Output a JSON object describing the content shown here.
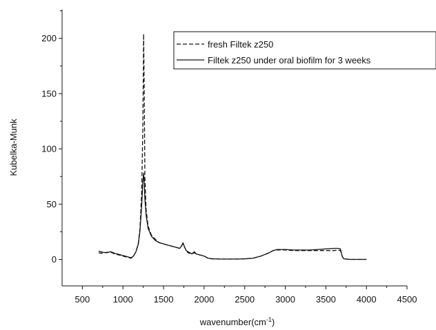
{
  "chart_data": {
    "type": "line",
    "xlabel": "wavenumber(cm",
    "xlabel_sup": "-1",
    "xlabel_close": ")",
    "ylabel": "Kubelka-Munk",
    "xlim": [
      250,
      4500
    ],
    "ylim": [
      -24,
      226
    ],
    "xticks": [
      500,
      1000,
      1500,
      2000,
      2500,
      3000,
      3500,
      4000,
      4500
    ],
    "yticks": [
      0,
      50,
      100,
      150,
      200
    ],
    "xtick_labels": [
      "500",
      "1000",
      "1500",
      "2000",
      "2500",
      "3000",
      "3500",
      "4000",
      "4500"
    ],
    "ytick_labels": [
      "0",
      "50",
      "100",
      "150",
      "200"
    ],
    "grid": false,
    "legend_position": "top-right",
    "series": [
      {
        "name": "fresh Filtek z250",
        "style": "dashed",
        "color": "#111111",
        "x": [
          700,
          750,
          800,
          850,
          900,
          950,
          1000,
          1050,
          1100,
          1130,
          1160,
          1190,
          1210,
          1230,
          1245,
          1255,
          1262,
          1270,
          1285,
          1310,
          1350,
          1400,
          1450,
          1500,
          1550,
          1600,
          1650,
          1700,
          1720,
          1740,
          1760,
          1780,
          1800,
          1850,
          1880,
          1900,
          1950,
          2000,
          2050,
          2100,
          2200,
          2300,
          2400,
          2500,
          2600,
          2700,
          2800,
          2850,
          2900,
          3000,
          3100,
          3200,
          3300,
          3400,
          3500,
          3600,
          3650,
          3680,
          3700,
          3720,
          3800,
          3900,
          4000
        ],
        "y": [
          6,
          5.5,
          6.5,
          6.5,
          5,
          4,
          3,
          2,
          1,
          3,
          7,
          15,
          28,
          60,
          120,
          204,
          150,
          75,
          45,
          30,
          22,
          18,
          15,
          14,
          13,
          12,
          11,
          10,
          12,
          14,
          11,
          8,
          6,
          5,
          6,
          5,
          4,
          3,
          1,
          0.5,
          0.3,
          0.3,
          0.3,
          0.5,
          1,
          3,
          6,
          8,
          8.5,
          8.5,
          8,
          8,
          8,
          8,
          8,
          8,
          8.5,
          8,
          3,
          0.5,
          0,
          0,
          0
        ]
      },
      {
        "name": "Filtek z250 under oral biofilm for 3 weeks",
        "style": "solid",
        "color": "#111111",
        "x": [
          700,
          750,
          800,
          850,
          900,
          950,
          1000,
          1050,
          1100,
          1130,
          1160,
          1190,
          1210,
          1230,
          1245,
          1255,
          1262,
          1270,
          1285,
          1310,
          1350,
          1400,
          1450,
          1500,
          1550,
          1600,
          1650,
          1700,
          1720,
          1740,
          1760,
          1780,
          1800,
          1850,
          1880,
          1900,
          1950,
          2000,
          2050,
          2100,
          2200,
          2300,
          2400,
          2500,
          2600,
          2700,
          2800,
          2850,
          2900,
          3000,
          3100,
          3200,
          3300,
          3400,
          3500,
          3600,
          3650,
          3680,
          3700,
          3720,
          3800,
          3900,
          4000
        ],
        "y": [
          7.5,
          6.5,
          6,
          7,
          5.5,
          4.5,
          3.5,
          2.5,
          1.5,
          3,
          7,
          14,
          26,
          48,
          70,
          78,
          70,
          55,
          40,
          28,
          21,
          17,
          15,
          14,
          13,
          12,
          11,
          10,
          12,
          15,
          11,
          8,
          7,
          5,
          7,
          5,
          4,
          3,
          1,
          0.5,
          0.3,
          0.3,
          0.3,
          0.5,
          1,
          3,
          6,
          8,
          9,
          9,
          8.5,
          8.5,
          8.5,
          9,
          9.5,
          10,
          10,
          9.5,
          3,
          0.5,
          0,
          0,
          0
        ]
      }
    ]
  }
}
